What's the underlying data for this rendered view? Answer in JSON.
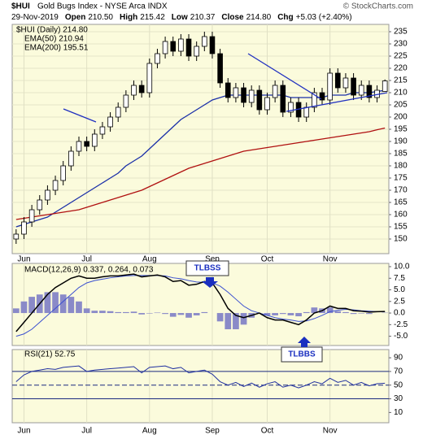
{
  "header": {
    "symbol": "$HUI",
    "name": "Gold Bugs Index - NYSE Arca INDX",
    "source": "© StockCharts.com",
    "date": "29-Nov-2019",
    "stats": [
      {
        "label": "Open",
        "value": "210.50"
      },
      {
        "label": "High",
        "value": "215.42"
      },
      {
        "label": "Low",
        "value": "210.37"
      },
      {
        "label": "Close",
        "value": "214.80"
      },
      {
        "label": "Chg",
        "value": "+5.03 (+2.40%)"
      }
    ]
  },
  "chart_data": [
    {
      "type": "candlestick",
      "legend": "$HUI (Daily) 214.80",
      "categories": [
        null,
        "Jun",
        null,
        null,
        null,
        null,
        null,
        null,
        null,
        "Jul",
        null,
        null,
        null,
        null,
        null,
        null,
        null,
        "Aug",
        null,
        null,
        null,
        null,
        null,
        null,
        null,
        "Sep",
        null,
        null,
        null,
        null,
        null,
        null,
        "Oct",
        null,
        null,
        null,
        null,
        null,
        null,
        null,
        "Nov",
        null,
        null,
        null,
        null,
        null,
        null,
        null
      ],
      "open": [
        150,
        152,
        157,
        162,
        166,
        170,
        174,
        180,
        186,
        190,
        188,
        193,
        196,
        200,
        204,
        209,
        213,
        210,
        222,
        226,
        231,
        227,
        232,
        225,
        229,
        233,
        226,
        214,
        208,
        212,
        206,
        211,
        203,
        208,
        213,
        202,
        206,
        200,
        204,
        210,
        207,
        218,
        212,
        216,
        209,
        213,
        208,
        210.5
      ],
      "high": [
        154,
        159,
        164,
        168,
        172,
        176,
        182,
        188,
        192,
        192,
        195,
        198,
        202,
        206,
        211,
        215,
        215,
        224,
        228,
        233,
        233,
        234,
        234,
        231,
        235,
        235,
        228,
        216,
        214,
        214,
        213,
        213,
        210,
        215,
        215,
        208,
        208,
        206,
        212,
        212,
        220,
        220,
        218,
        218,
        215,
        215,
        213,
        215.42
      ],
      "low": [
        148,
        150,
        155,
        160,
        164,
        168,
        172,
        178,
        184,
        186,
        186,
        191,
        194,
        198,
        202,
        207,
        208,
        208,
        220,
        224,
        225,
        225,
        223,
        223,
        227,
        224,
        212,
        206,
        206,
        204,
        204,
        201,
        201,
        206,
        200,
        200,
        198,
        198,
        202,
        205,
        205,
        210,
        210,
        207,
        207,
        206,
        206,
        210.37
      ],
      "close": [
        152,
        157,
        162,
        166,
        170,
        174,
        180,
        186,
        190,
        188,
        193,
        196,
        200,
        204,
        209,
        213,
        210,
        222,
        226,
        231,
        227,
        232,
        225,
        229,
        233,
        226,
        214,
        208,
        212,
        206,
        211,
        203,
        208,
        213,
        202,
        206,
        200,
        204,
        210,
        207,
        218,
        212,
        216,
        209,
        213,
        208,
        211,
        214.8
      ],
      "series": [
        {
          "name": "EMA(50) 210.94",
          "color": "#1a2fa8",
          "values": [
            155,
            156,
            157,
            158,
            159,
            161,
            163,
            165,
            167,
            169,
            171,
            173,
            175,
            177,
            180,
            182,
            184,
            187,
            190,
            193,
            196,
            199,
            201,
            203,
            205,
            207,
            208,
            209,
            209,
            209,
            209,
            209,
            209,
            209,
            209,
            208,
            208,
            208,
            208,
            208,
            209,
            209,
            209,
            210,
            210,
            210,
            210.5,
            210.94
          ]
        },
        {
          "name": "EMA(200) 195.51",
          "color": "#b01010",
          "values": [
            158,
            158.5,
            159,
            159.5,
            160,
            160.5,
            161,
            161.5,
            162,
            163,
            164,
            165,
            166,
            167,
            168,
            169,
            170,
            171.5,
            173,
            174.5,
            176,
            177.5,
            179,
            180,
            181,
            182,
            183,
            184,
            185,
            186,
            186.5,
            187,
            187.5,
            188,
            188.5,
            189,
            189.5,
            190,
            190.5,
            191,
            191.5,
            192,
            192.5,
            193,
            193.5,
            194,
            194.8,
            195.51
          ]
        }
      ],
      "ylim": [
        144,
        238
      ],
      "yticks": [
        150,
        155,
        160,
        165,
        170,
        175,
        180,
        185,
        190,
        195,
        200,
        205,
        210,
        215,
        220,
        225,
        230,
        235
      ],
      "grid": true
    },
    {
      "type": "macd",
      "legend": "MACD(12,26,9) 0.337, 0.264, 0.073",
      "annotations": [
        "TLBSS",
        "TLBBS"
      ],
      "series": [
        {
          "name": "MACD",
          "color": "#000000",
          "values": [
            -4,
            -2,
            0,
            2,
            4,
            5.5,
            6.5,
            7.5,
            8,
            7.5,
            7.5,
            7.8,
            8,
            8,
            8.2,
            8.4,
            7.8,
            8,
            8.2,
            7.8,
            6.8,
            7,
            6,
            6.2,
            6.8,
            6.5,
            4,
            1,
            -0.5,
            -1,
            -0.5,
            0,
            -1,
            -1.5,
            -1.5,
            -2,
            -2.5,
            -1.5,
            0,
            0.5,
            1.5,
            1,
            1,
            0.5,
            0.4,
            0.2,
            0.3,
            0.337
          ]
        },
        {
          "name": "Signal",
          "color": "#3a4fd0",
          "values": [
            -5,
            -4.5,
            -3.5,
            -2,
            -0.5,
            1,
            2.5,
            4,
            5.5,
            6.5,
            7,
            7.3,
            7.6,
            7.8,
            8,
            8.1,
            8.1,
            8.1,
            8.1,
            8,
            7.6,
            7.4,
            7,
            6.7,
            6.6,
            6.5,
            5.8,
            4.5,
            3,
            1.5,
            0.5,
            0,
            -0.5,
            -1,
            -1.3,
            -1.5,
            -1.8,
            -1.7,
            -1.2,
            -0.5,
            0.3,
            0.6,
            0.8,
            0.7,
            0.5,
            0.4,
            0.3,
            0.264
          ]
        },
        {
          "name": "Histogram",
          "color": "#8a8ac8",
          "values": [
            1,
            2.5,
            3.5,
            4,
            4.5,
            4.5,
            4,
            3.5,
            2.5,
            1,
            0.5,
            0.5,
            0.4,
            0.2,
            0.2,
            0.3,
            -0.3,
            -0.1,
            0.1,
            -0.2,
            -0.8,
            -0.4,
            -1,
            -0.5,
            0.2,
            0,
            -1.8,
            -3.5,
            -3.5,
            -2.5,
            -1,
            0,
            -0.5,
            -0.5,
            -0.2,
            -0.5,
            -0.7,
            0.2,
            1.2,
            1,
            1.2,
            0.4,
            0.2,
            -0.2,
            -0.1,
            -0.2,
            0,
            0.073
          ]
        }
      ],
      "ylim": [
        -7,
        10.7
      ],
      "yticks": [
        {
          "value": -5,
          "label": "-5.0"
        },
        {
          "value": -2.5,
          "label": "-2.5"
        },
        {
          "value": 0,
          "label": "0.0"
        },
        {
          "value": 2.5,
          "label": "2.5"
        },
        {
          "value": 5,
          "label": "5.0"
        },
        {
          "value": 7.5,
          "label": "7.5"
        },
        {
          "value": 10,
          "label": "10.0"
        }
      ]
    },
    {
      "type": "line",
      "legend": "RSI(21) 52.75",
      "categories": [
        null,
        "Jun",
        null,
        null,
        null,
        null,
        null,
        null,
        null,
        "Jul",
        null,
        null,
        null,
        null,
        null,
        null,
        null,
        "Aug",
        null,
        null,
        null,
        null,
        null,
        null,
        null,
        "Sep",
        null,
        null,
        null,
        null,
        null,
        null,
        "Oct",
        null,
        null,
        null,
        null,
        null,
        null,
        null,
        "Nov",
        null,
        null,
        null,
        null,
        null,
        null,
        null
      ],
      "series": [
        {
          "name": "RSI(21)",
          "color": "#2030a0",
          "values": [
            55,
            65,
            70,
            72,
            74,
            73,
            76,
            77,
            78,
            70,
            72,
            73,
            74,
            75,
            76,
            77,
            68,
            76,
            77,
            78,
            74,
            76,
            68,
            70,
            72,
            66,
            55,
            50,
            54,
            48,
            53,
            47,
            52,
            55,
            47,
            50,
            46,
            50,
            55,
            52,
            60,
            54,
            57,
            50,
            54,
            49,
            52,
            52.75
          ]
        }
      ],
      "ylim": [
        -5,
        102
      ],
      "yticks": [
        10,
        30,
        50,
        70,
        90
      ],
      "levels": [
        70,
        50,
        30
      ]
    }
  ]
}
